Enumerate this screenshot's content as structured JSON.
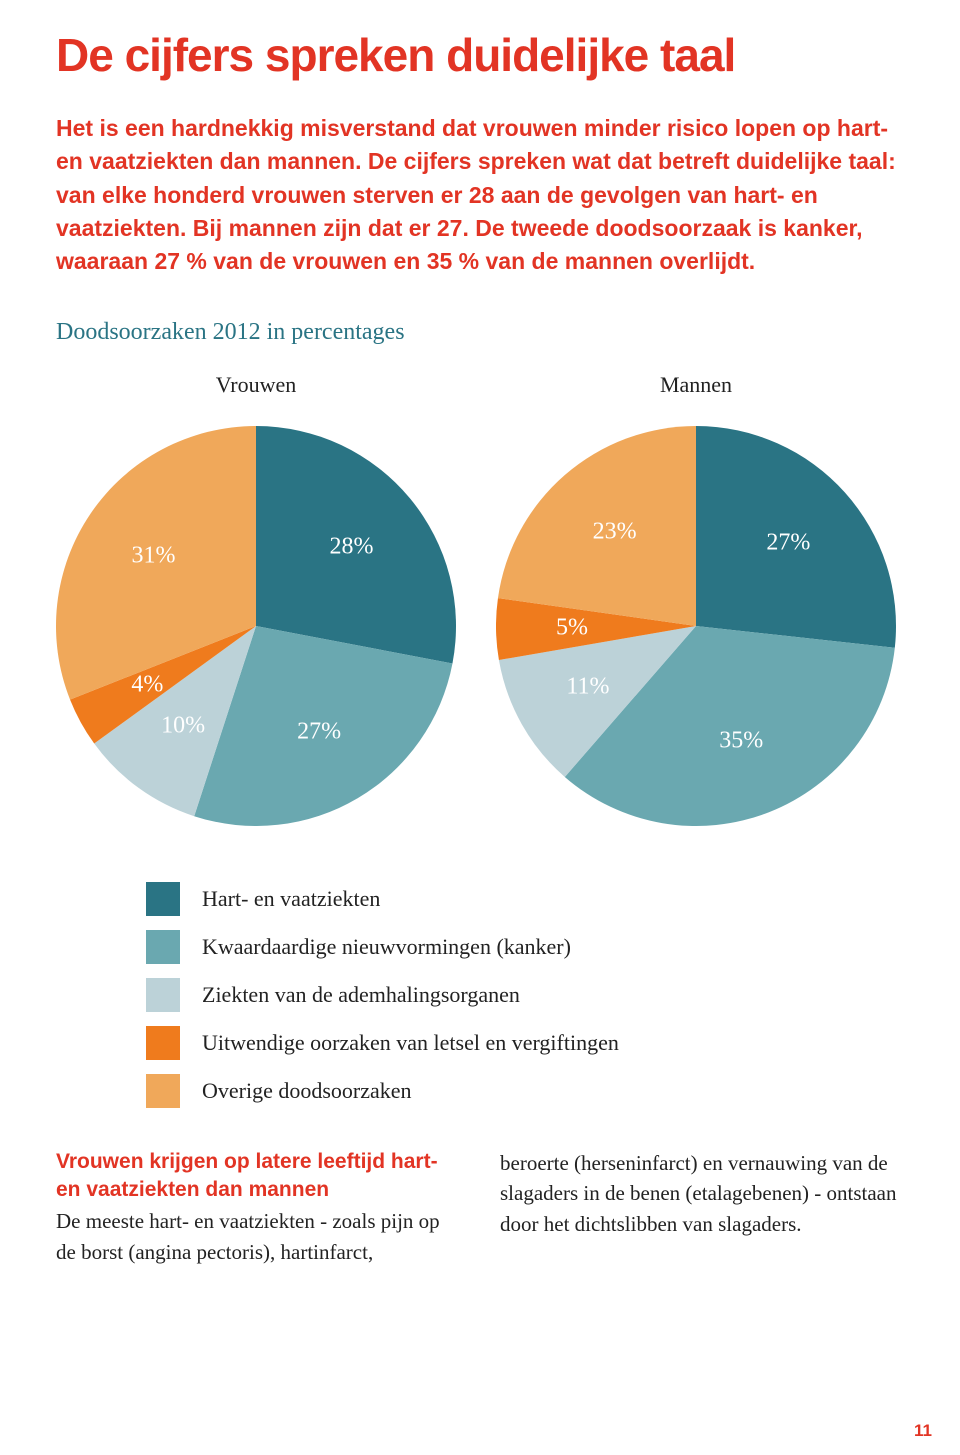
{
  "colors": {
    "red": "#e23424",
    "hart": "#2a7484",
    "kanker": "#6aa8b0",
    "adem": "#bcd2d8",
    "uitwendig": "#ef7b1d",
    "overig": "#f0a85a",
    "body_text": "#222222",
    "chart_title_color": "#2a7484",
    "subhead_color": "#e23424",
    "pagenum_color": "#e23424"
  },
  "fonts": {
    "h1_size": 46,
    "intro_size": 23,
    "chart_title_size": 24,
    "chart_label_size": 22,
    "pie_label_size": 24,
    "legend_size": 22,
    "subhead_size": 21,
    "body_size": 21,
    "pagenum_size": 17
  },
  "h1": "De cijfers spreken duidelijke taal",
  "intro": "Het is een hardnekkig misverstand dat vrouwen minder risico lopen op hart- en vaatziekten dan mannen. De cijfers spreken wat dat betreft duidelijke taal: van elke honderd vrouwen sterven er 28 aan de gevolgen van hart- en vaatziekten. Bij mannen zijn dat er 27. De tweede doodsoorzaak is kanker, waaraan 27 % van de vrouwen en 35 % van de mannen overlijdt.",
  "chart_title": "Doodsoorzaken 2012 in percentages",
  "charts": {
    "vrouwen": {
      "title": "Vrouwen",
      "slices": [
        {
          "label": "28%",
          "value": 28,
          "color_key": "hart"
        },
        {
          "label": "27%",
          "value": 27,
          "color_key": "kanker"
        },
        {
          "label": "10%",
          "value": 10,
          "color_key": "adem"
        },
        {
          "label": "4%",
          "value": 4,
          "color_key": "uitwendig"
        },
        {
          "label": "31%",
          "value": 31,
          "color_key": "overig"
        }
      ]
    },
    "mannen": {
      "title": "Mannen",
      "slices": [
        {
          "label": "27%",
          "value": 27,
          "color_key": "hart"
        },
        {
          "label": "35%",
          "value": 35,
          "color_key": "kanker"
        },
        {
          "label": "11%",
          "value": 11,
          "color_key": "adem"
        },
        {
          "label": "5%",
          "value": 5,
          "color_key": "uitwendig"
        },
        {
          "label": "23%",
          "value": 23,
          "color_key": "overig"
        }
      ]
    }
  },
  "legend": [
    {
      "color_key": "hart",
      "label": "Hart- en vaatziekten"
    },
    {
      "color_key": "kanker",
      "label": "Kwaardaardige nieuwvormingen (kanker)"
    },
    {
      "color_key": "adem",
      "label": "Ziekten van de ademhalingsorganen"
    },
    {
      "color_key": "uitwendig",
      "label": "Uitwendige oorzaken van letsel en vergiftingen"
    },
    {
      "color_key": "overig",
      "label": "Overige doodsoorzaken"
    }
  ],
  "bottom": {
    "subhead": "Vrouwen krijgen op latere leeftijd hart- en vaatziekten dan mannen",
    "left_body": "De meeste hart- en vaatziekten - zoals pijn op de borst (angina pectoris), hartinfarct,",
    "right_body": "beroerte (herseninfarct) en vernauwing van de slagaders in de benen (etalagebenen) - ontstaan door het dichtslibben van slagaders."
  },
  "pagenum": "11"
}
